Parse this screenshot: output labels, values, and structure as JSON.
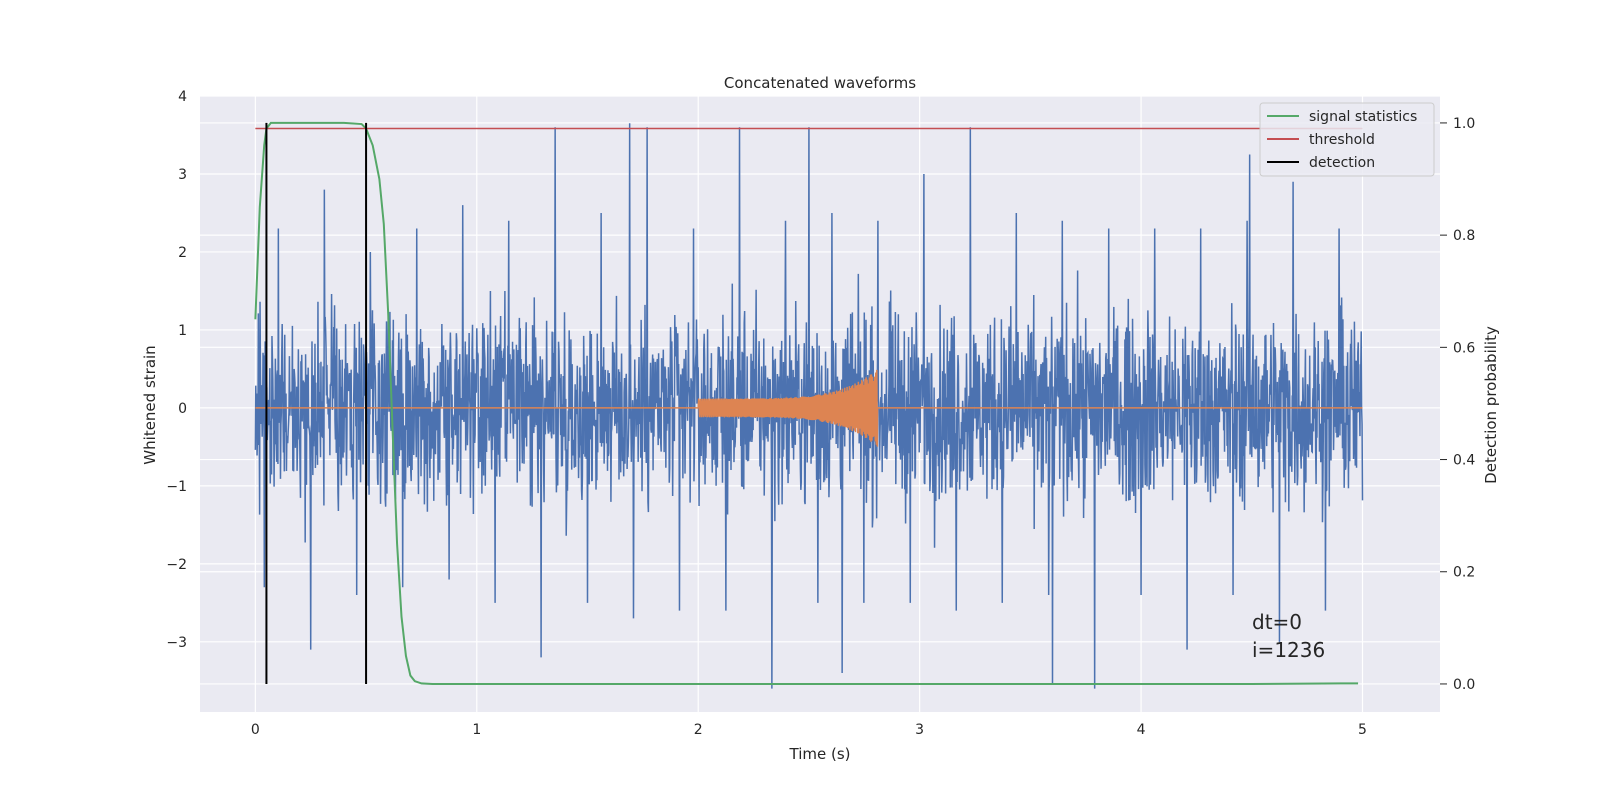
{
  "chart_data": {
    "type": "line",
    "title": "Concatenated waveforms",
    "xlabel": "Time (s)",
    "ylabel": "Whitened strain",
    "ylabel_right": "Detection probability",
    "xlim": [
      -0.25,
      5.35
    ],
    "ylim": [
      -3.9,
      4.0
    ],
    "ylim_right": [
      -0.05,
      1.048
    ],
    "x_ticks": [
      0,
      1,
      2,
      3,
      4,
      5
    ],
    "y_ticks": [
      -3,
      -2,
      -1,
      0,
      1,
      2,
      3,
      4
    ],
    "y_ticks_right": [
      0.0,
      0.2,
      0.4,
      0.6,
      0.8,
      1.0
    ],
    "y_tick_labels_right": [
      "0.0",
      "0.2",
      "0.4",
      "0.6",
      "0.8",
      "1.0"
    ],
    "grid": true,
    "legend_position": "top-right",
    "series": [
      {
        "name": "",
        "axis": "left",
        "kind": "noise",
        "color": "#4c72b0",
        "x_range": [
          0,
          5
        ],
        "envelope_max": [
          2.3,
          2.8,
          2.0,
          2.3,
          2.6,
          2.4,
          3.6,
          2.5,
          3.6,
          2.3,
          3.6,
          2.4,
          2.5,
          2.4,
          3.0,
          3.6,
          2.5,
          2.4,
          2.3,
          2.3,
          2.3,
          2.4,
          2.9,
          2.3
        ],
        "envelope_min": [
          -2.3,
          -3.1,
          -2.4,
          -2.3,
          -2.2,
          -2.5,
          -3.2,
          -2.5,
          -2.7,
          -2.6,
          -2.6,
          -3.6,
          -2.5,
          -2.5,
          -2.5,
          -2.6,
          -2.5,
          -2.4,
          -3.6,
          -2.4,
          -3.1,
          -2.4,
          -3.0,
          -2.6
        ],
        "spikes": [
          [
            1.69,
            3.65
          ],
          [
            2.5,
            3.6
          ],
          [
            2.65,
            -3.4
          ],
          [
            3.6,
            -3.55
          ],
          [
            4.49,
            3.25
          ]
        ]
      },
      {
        "name": "",
        "axis": "left",
        "kind": "chirp",
        "color": "#dd8452",
        "x_range": [
          0,
          5
        ],
        "chirp_start": 2.0,
        "chirp_end": 2.81,
        "chirp_amp_start": 0.12,
        "chirp_amp_peak": 0.5
      },
      {
        "name": "signal statistics",
        "axis": "right",
        "color": "#55a868",
        "x": [
          0,
          0.02,
          0.04,
          0.05,
          0.07,
          0.1,
          0.2,
          0.3,
          0.4,
          0.48,
          0.5,
          0.53,
          0.56,
          0.58,
          0.6,
          0.62,
          0.64,
          0.66,
          0.68,
          0.7,
          0.72,
          0.75,
          0.8,
          1.5,
          2.5,
          3.5,
          4.5,
          4.9,
          4.98
        ],
        "values": [
          0.65,
          0.85,
          0.96,
          0.99,
          1.0,
          1.0,
          1.0,
          1.0,
          1.0,
          0.998,
          0.99,
          0.96,
          0.9,
          0.82,
          0.66,
          0.45,
          0.25,
          0.12,
          0.05,
          0.015,
          0.005,
          0.001,
          0.0,
          0.0,
          0.0,
          0.0,
          0.0,
          0.001,
          0.001
        ]
      },
      {
        "name": "threshold",
        "axis": "right",
        "color": "#c44e52",
        "x": [
          0,
          5
        ],
        "values": [
          0.99,
          0.99
        ]
      },
      {
        "name": "detection",
        "axis": "right",
        "color": "#000000",
        "kind": "vlines",
        "x": [
          0.05,
          0.5
        ],
        "values": [
          [
            0.0,
            1.0
          ],
          [
            0.0,
            1.0
          ]
        ]
      }
    ],
    "annotations": [
      "dt=0",
      "i=1236"
    ]
  }
}
